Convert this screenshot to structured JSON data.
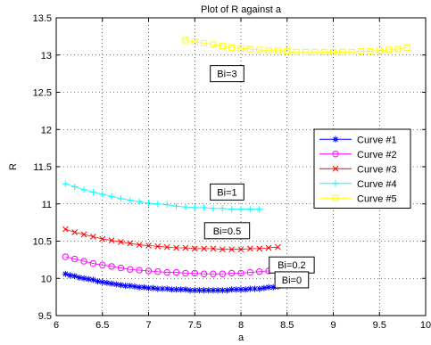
{
  "chart_data": {
    "type": "line",
    "title": "Plot of R against a",
    "xlabel": "a",
    "ylabel": "R",
    "xlim": [
      6,
      10
    ],
    "ylim": [
      9.5,
      13.5
    ],
    "xticks": [
      "6",
      "6.5",
      "7",
      "7.5",
      "8",
      "8.5",
      "9",
      "9.5",
      "10"
    ],
    "yticks": [
      "9.5",
      "10",
      "10.5",
      "11",
      "11.5",
      "12",
      "12.5",
      "13",
      "13.5"
    ],
    "grid": true,
    "legend_position": "right",
    "series": [
      {
        "name": "Curve #1",
        "color": "#0000ff",
        "marker": "asterisk",
        "x": [
          6.1,
          6.15,
          6.2,
          6.25,
          6.3,
          6.35,
          6.4,
          6.45,
          6.5,
          6.55,
          6.6,
          6.65,
          6.7,
          6.75,
          6.8,
          6.85,
          6.9,
          6.95,
          7.0,
          7.05,
          7.1,
          7.15,
          7.2,
          7.25,
          7.3,
          7.35,
          7.4,
          7.45,
          7.5,
          7.55,
          7.6,
          7.65,
          7.7,
          7.75,
          7.8,
          7.85,
          7.9,
          7.95,
          8.0,
          8.05,
          8.1,
          8.15,
          8.2,
          8.25,
          8.3,
          8.35,
          8.4
        ],
        "y": [
          10.06,
          10.04,
          10.03,
          10.01,
          10.0,
          9.99,
          9.98,
          9.96,
          9.95,
          9.94,
          9.93,
          9.92,
          9.91,
          9.9,
          9.9,
          9.89,
          9.88,
          9.88,
          9.87,
          9.87,
          9.86,
          9.86,
          9.86,
          9.85,
          9.85,
          9.85,
          9.85,
          9.84,
          9.84,
          9.84,
          9.84,
          9.84,
          9.84,
          9.84,
          9.84,
          9.84,
          9.85,
          9.85,
          9.85,
          9.85,
          9.86,
          9.86,
          9.86,
          9.87,
          9.88,
          9.88,
          9.89
        ]
      },
      {
        "name": "Curve #2",
        "color": "#ff00ff",
        "marker": "circle",
        "x": [
          6.1,
          6.2,
          6.3,
          6.4,
          6.5,
          6.6,
          6.7,
          6.8,
          6.9,
          7.0,
          7.1,
          7.2,
          7.3,
          7.4,
          7.5,
          7.6,
          7.7,
          7.8,
          7.9,
          8.0,
          8.1,
          8.2,
          8.3
        ],
        "y": [
          10.29,
          10.26,
          10.23,
          10.2,
          10.18,
          10.16,
          10.14,
          10.12,
          10.11,
          10.1,
          10.09,
          10.08,
          10.08,
          10.07,
          10.07,
          10.06,
          10.06,
          10.06,
          10.07,
          10.07,
          10.08,
          10.09,
          10.1
        ]
      },
      {
        "name": "Curve #3",
        "color": "#ff0000",
        "marker": "x",
        "x": [
          6.1,
          6.2,
          6.3,
          6.4,
          6.5,
          6.6,
          6.7,
          6.8,
          6.9,
          7.0,
          7.1,
          7.2,
          7.3,
          7.4,
          7.5,
          7.6,
          7.7,
          7.8,
          7.9,
          8.0,
          8.1,
          8.2,
          8.3,
          8.4
        ],
        "y": [
          10.66,
          10.62,
          10.59,
          10.56,
          10.53,
          10.51,
          10.49,
          10.47,
          10.45,
          10.44,
          10.43,
          10.42,
          10.41,
          10.41,
          10.4,
          10.4,
          10.4,
          10.39,
          10.39,
          10.39,
          10.4,
          10.4,
          10.41,
          10.42
        ]
      },
      {
        "name": "Curve #4",
        "color": "#00ffff",
        "marker": "plus",
        "x": [
          6.1,
          6.2,
          6.3,
          6.4,
          6.5,
          6.6,
          6.7,
          6.8,
          6.9,
          7.0,
          7.1,
          7.2,
          7.3,
          7.4,
          7.5,
          7.6,
          7.7,
          7.8,
          7.9,
          8.0,
          8.1,
          8.2
        ],
        "y": [
          11.27,
          11.23,
          11.19,
          11.16,
          11.13,
          11.1,
          11.07,
          11.05,
          11.03,
          11.01,
          11.0,
          10.99,
          10.97,
          10.96,
          10.95,
          10.95,
          10.94,
          10.94,
          10.93,
          10.93,
          10.93,
          10.93
        ]
      },
      {
        "name": "Curve #5",
        "color": "#ffff00",
        "marker": "square",
        "x": [
          7.4,
          7.5,
          7.6,
          7.7,
          7.8,
          7.9,
          8.0,
          8.1,
          8.2,
          8.3,
          8.4,
          8.5,
          8.6,
          8.7,
          8.8,
          8.9,
          9.0,
          9.1,
          9.2,
          9.3,
          9.4,
          9.5,
          9.6,
          9.7,
          9.8
        ],
        "y": [
          13.2,
          13.18,
          13.16,
          13.14,
          13.12,
          13.1,
          13.09,
          13.08,
          13.07,
          13.06,
          13.06,
          13.05,
          13.04,
          13.04,
          13.04,
          13.04,
          13.04,
          13.04,
          13.04,
          13.05,
          13.05,
          13.06,
          13.07,
          13.08,
          13.1
        ]
      }
    ],
    "annotations": [
      {
        "text": "Bi=3",
        "x": 7.85,
        "y": 12.75
      },
      {
        "text": "Bi=1",
        "x": 7.85,
        "y": 11.16
      },
      {
        "text": "Bi=0.5",
        "x": 7.85,
        "y": 10.64
      },
      {
        "text": "Bi=0.2",
        "x": 8.55,
        "y": 10.18
      },
      {
        "text": "Bi=0",
        "x": 8.55,
        "y": 9.98
      }
    ]
  }
}
